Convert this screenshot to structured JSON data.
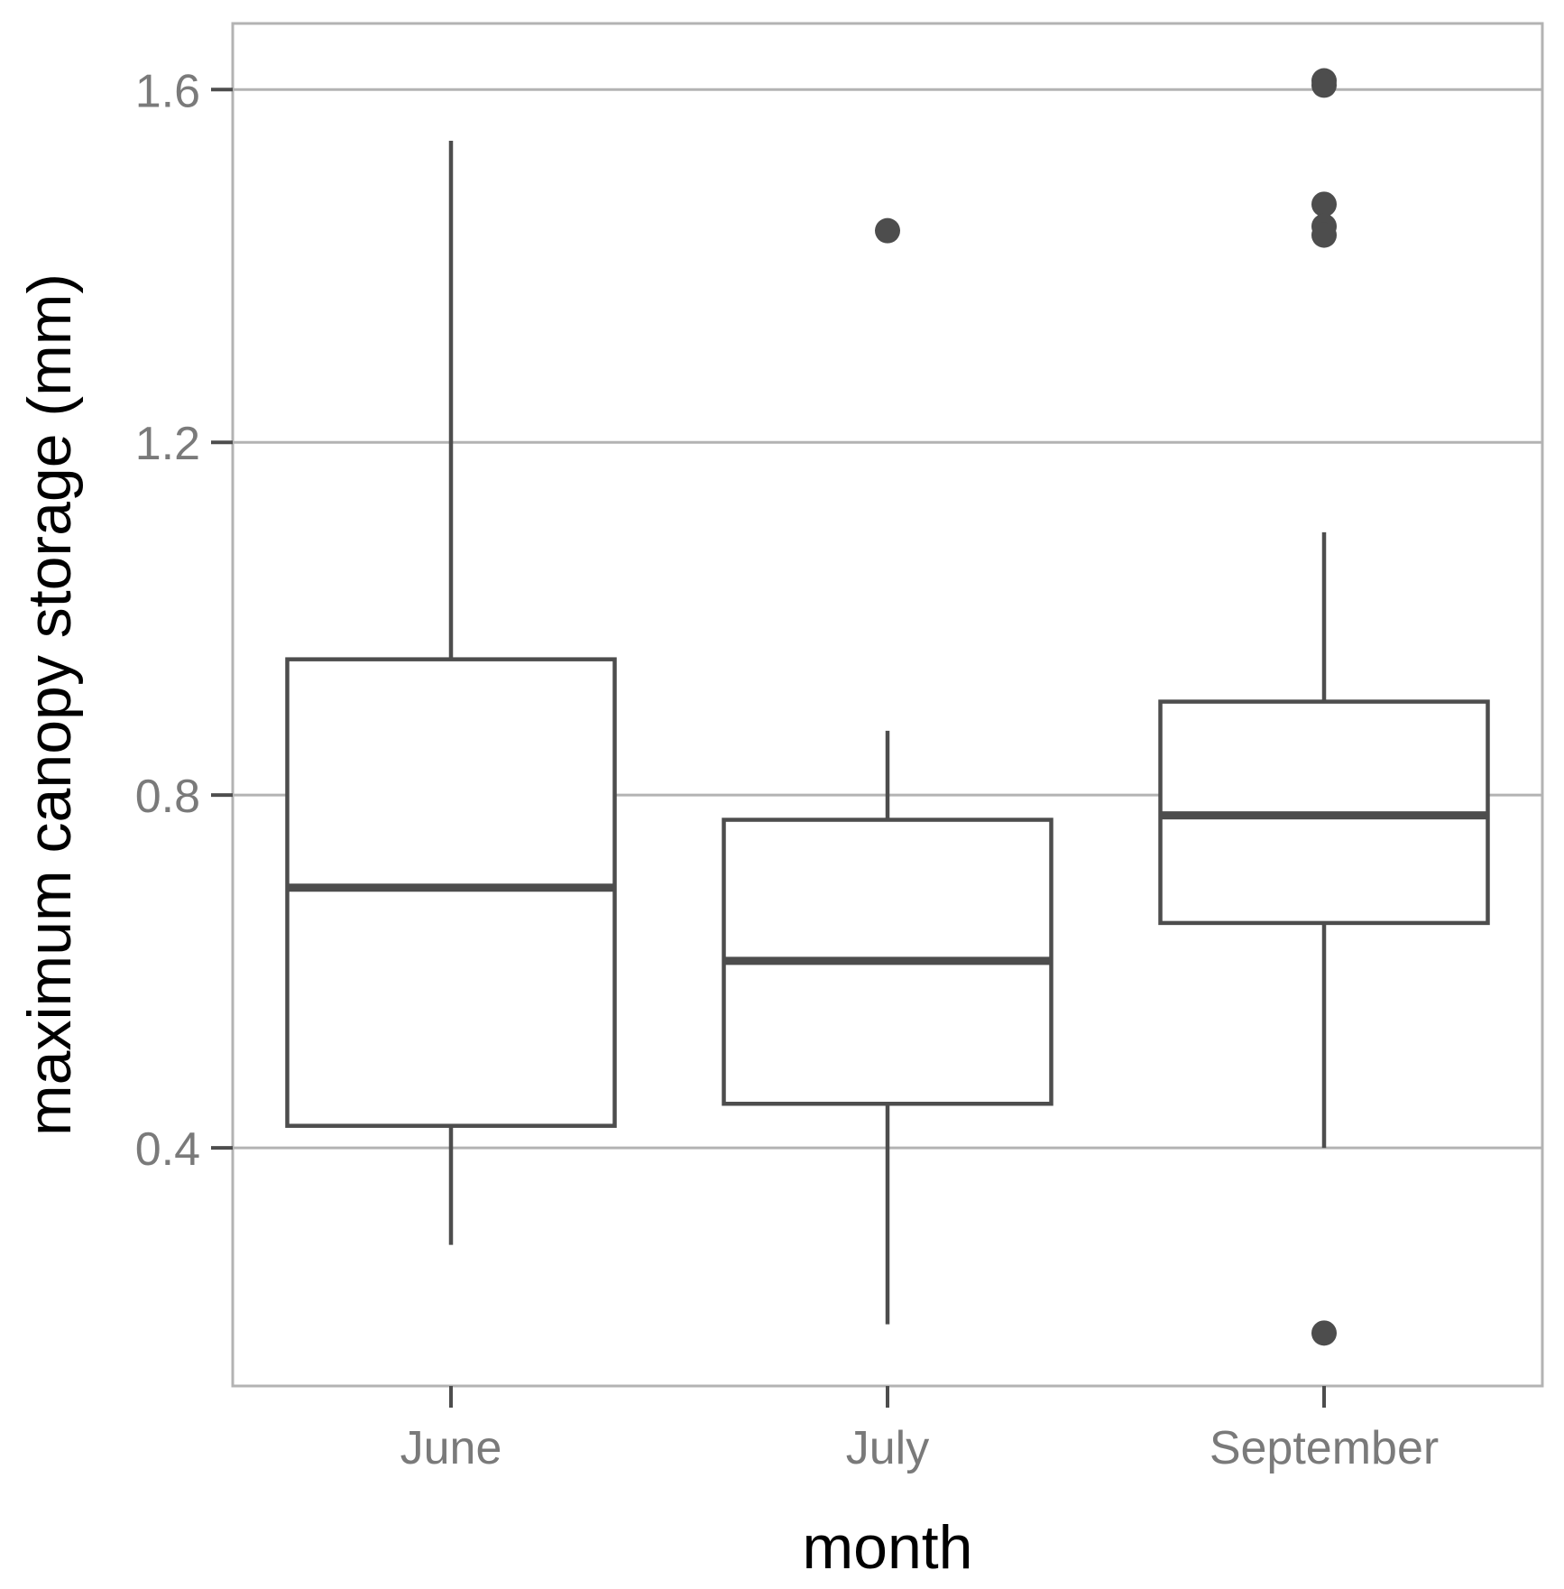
{
  "chart_data": {
    "type": "boxplot",
    "xlabel": "month",
    "ylabel": "maximum canopy storage (mm)",
    "ylim": [
      0.13,
      1.675
    ],
    "yticks": [
      0.4,
      0.8,
      1.2,
      1.6
    ],
    "ytick_labels": [
      "0.4",
      "0.8",
      "1.2",
      "1.6"
    ],
    "grid": "horizontal major lines",
    "legend": "none",
    "categories": [
      "June",
      "July",
      "September"
    ],
    "boxes": [
      {
        "category": "June",
        "whisker_low": 0.29,
        "q1": 0.425,
        "median": 0.695,
        "q3": 0.954,
        "whisker_high": 1.542,
        "outliers": []
      },
      {
        "category": "July",
        "whisker_low": 0.2,
        "q1": 0.45,
        "median": 0.612,
        "q3": 0.772,
        "whisker_high": 0.873,
        "outliers": [
          1.44
        ]
      },
      {
        "category": "September",
        "whisker_low": 0.4,
        "q1": 0.655,
        "median": 0.777,
        "q3": 0.906,
        "whisker_high": 1.098,
        "outliers": [
          1.61,
          1.605,
          1.47,
          1.445,
          1.435,
          0.19
        ]
      }
    ],
    "colors": {
      "box_stroke": "#4d4d4d",
      "grid": "#b3b3b3",
      "panel_border": "#b3b3b3",
      "tick_text": "#7a7a7a",
      "title_text": "#000000"
    }
  }
}
